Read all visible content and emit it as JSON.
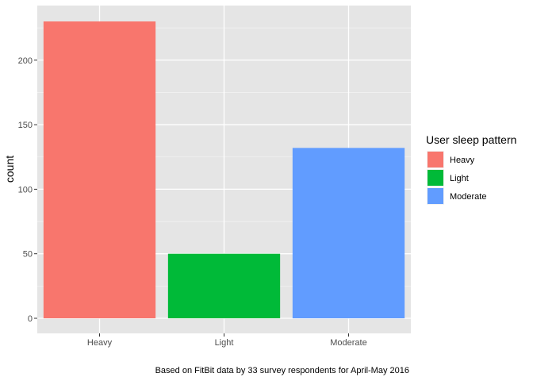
{
  "chart_data": {
    "type": "bar",
    "categories": [
      "Heavy",
      "Light",
      "Moderate"
    ],
    "values": [
      230,
      50,
      132
    ],
    "ylim": [
      0,
      245
    ],
    "yticks": [
      0,
      50,
      100,
      150,
      200
    ],
    "ylabel": "count",
    "xlabel": "",
    "caption": "Based on FitBit data by 33 survey respondents for April-May 2016",
    "legend": {
      "title": "User sleep pattern",
      "placement": "right",
      "entries": [
        "Heavy",
        "Light",
        "Moderate"
      ]
    },
    "colors": {
      "Heavy": "#F8766D",
      "Light": "#00BA38",
      "Moderate": "#619CFF"
    },
    "panel_background": "#EBEBEB",
    "grid": true
  }
}
